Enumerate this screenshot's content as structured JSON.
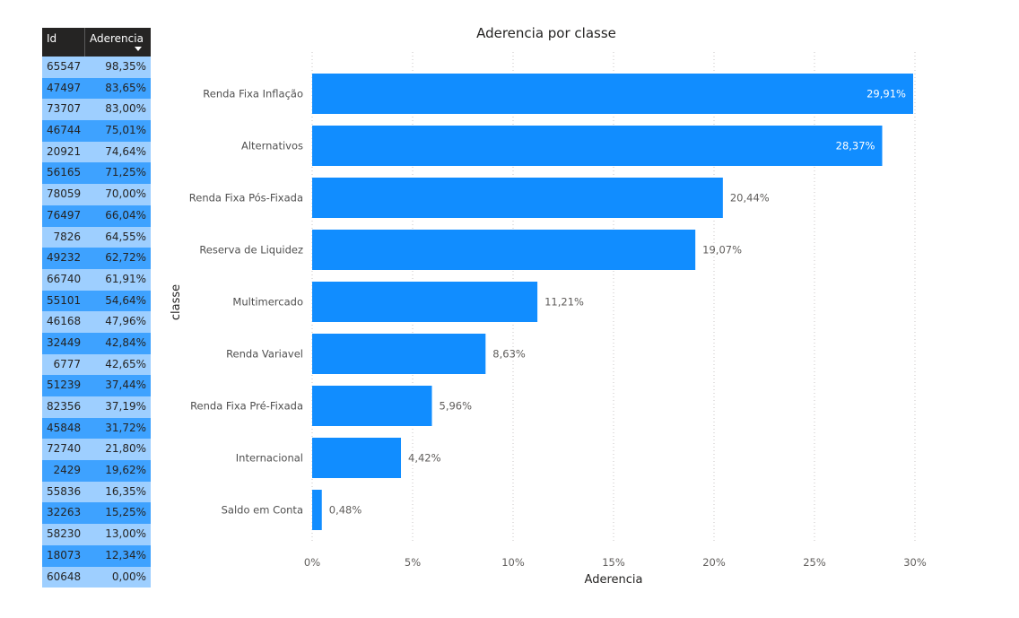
{
  "table": {
    "headers": {
      "id": "Id",
      "aderencia": "Aderencia"
    },
    "rows": [
      {
        "id": "65547",
        "aderencia": "98,35%"
      },
      {
        "id": "47497",
        "aderencia": "83,65%"
      },
      {
        "id": "73707",
        "aderencia": "83,00%"
      },
      {
        "id": "46744",
        "aderencia": "75,01%"
      },
      {
        "id": "20921",
        "aderencia": "74,64%"
      },
      {
        "id": "56165",
        "aderencia": "71,25%"
      },
      {
        "id": "78059",
        "aderencia": "70,00%"
      },
      {
        "id": "76497",
        "aderencia": "66,04%"
      },
      {
        "id": "7826",
        "aderencia": "64,55%"
      },
      {
        "id": "49232",
        "aderencia": "62,72%"
      },
      {
        "id": "66740",
        "aderencia": "61,91%"
      },
      {
        "id": "55101",
        "aderencia": "54,64%"
      },
      {
        "id": "46168",
        "aderencia": "47,96%"
      },
      {
        "id": "32449",
        "aderencia": "42,84%"
      },
      {
        "id": "6777",
        "aderencia": "42,65%"
      },
      {
        "id": "51239",
        "aderencia": "37,44%"
      },
      {
        "id": "82356",
        "aderencia": "37,19%"
      },
      {
        "id": "45848",
        "aderencia": "31,72%"
      },
      {
        "id": "72740",
        "aderencia": "21,80%"
      },
      {
        "id": "2429",
        "aderencia": "19,62%"
      },
      {
        "id": "55836",
        "aderencia": "16,35%"
      },
      {
        "id": "32263",
        "aderencia": "15,25%"
      },
      {
        "id": "58230",
        "aderencia": "13,00%"
      },
      {
        "id": "18073",
        "aderencia": "12,34%"
      },
      {
        "id": "60648",
        "aderencia": "0,00%"
      }
    ],
    "colors": {
      "header_bg": "#252423",
      "row_light": "#9ecfff",
      "row_dark": "#3ea2ff"
    }
  },
  "chart_data": {
    "type": "bar",
    "orientation": "horizontal",
    "title": "Aderencia por classe",
    "xlabel": "Aderencia",
    "ylabel": "classe",
    "categories": [
      "Renda Fixa Inflação",
      "Alternativos",
      "Renda Fixa Pós-Fixada",
      "Reserva de Liquidez",
      "Multimercado",
      "Renda Variavel",
      "Renda Fixa Pré-Fixada",
      "Internacional",
      "Saldo em Conta"
    ],
    "values": [
      29.91,
      28.37,
      20.44,
      19.07,
      11.21,
      8.63,
      5.96,
      4.42,
      0.48
    ],
    "data_labels": [
      "29,91%",
      "28,37%",
      "20,44%",
      "19,07%",
      "11,21%",
      "8,63%",
      "5,96%",
      "4,42%",
      "0,48%"
    ],
    "xlim": [
      0,
      30
    ],
    "xticks": [
      0,
      5,
      10,
      15,
      20,
      25,
      30
    ],
    "xtick_labels": [
      "0%",
      "5%",
      "10%",
      "15%",
      "20%",
      "25%",
      "30%"
    ],
    "grid": "vertical dotted",
    "bar_color": "#118dff"
  }
}
